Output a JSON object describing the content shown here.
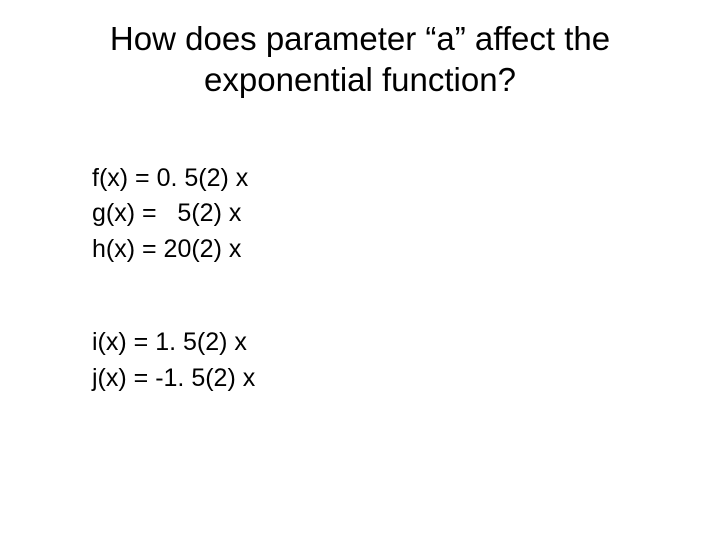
{
  "title_line1": "How does parameter “a” affect the",
  "title_line2": "exponential function?",
  "group1": {
    "eq1": "f(x) = 0. 5(2) x",
    "eq2": "g(x) =   5(2) x",
    "eq3": "h(x) = 20(2) x"
  },
  "group2": {
    "eq1": "i(x) = 1. 5(2) x",
    "eq2": "j(x) = -1. 5(2) x"
  },
  "style": {
    "background_color": "#ffffff",
    "text_color": "#000000",
    "title_fontsize": 33,
    "body_fontsize": 25,
    "font_family": "Arial"
  }
}
